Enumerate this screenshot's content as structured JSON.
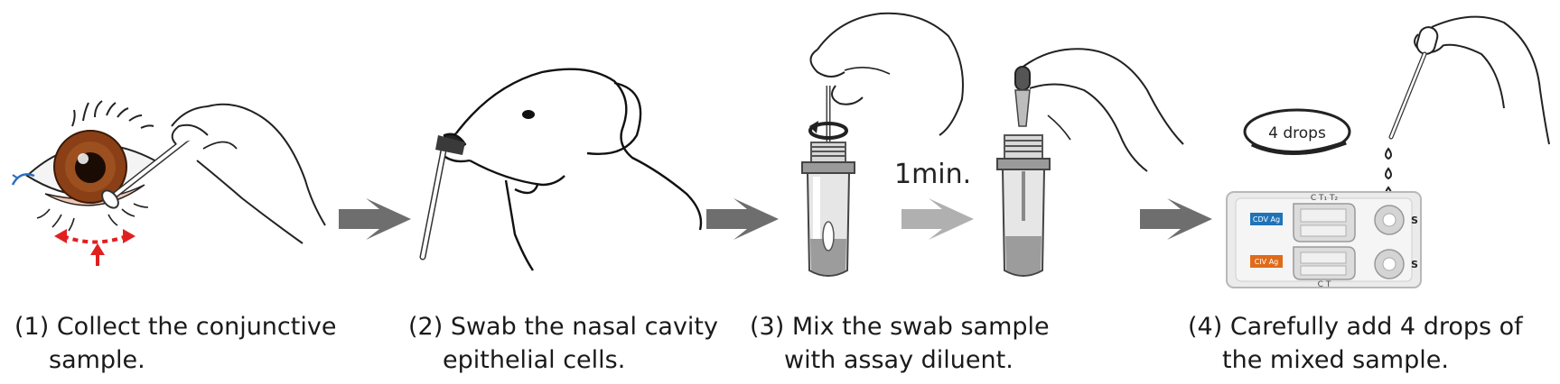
{
  "steps": [
    {
      "caption_line1": "(1) Collect the conjunctive",
      "caption_line2": "sample."
    },
    {
      "caption_line1": "(2) Swab the nasal cavity",
      "caption_line2": "epithelial cells."
    },
    {
      "caption_line1": "(3) Mix the swab sample",
      "caption_line2": "with assay diluent."
    },
    {
      "caption_line1": "(4) Carefully add 4 drops of",
      "caption_line2": "the mixed sample."
    }
  ],
  "timer_label": "1min.",
  "drops_label": "4 drops",
  "cassette": {
    "top_markers": "C   T₁   T₂",
    "bottom_markers": "C   T",
    "top_tag": "CDV Ag",
    "bottom_tag": "CIV Ag",
    "well_label_top": "S",
    "well_label_bottom": "S"
  },
  "colors": {
    "arrow_dark": "#6e6e6e",
    "arrow_light": "#b0b0b0",
    "red_arrows": "#e02020",
    "iris": "#8b3f16",
    "cdv_tag": "#1f74b8",
    "civ_tag": "#e06a1a"
  }
}
